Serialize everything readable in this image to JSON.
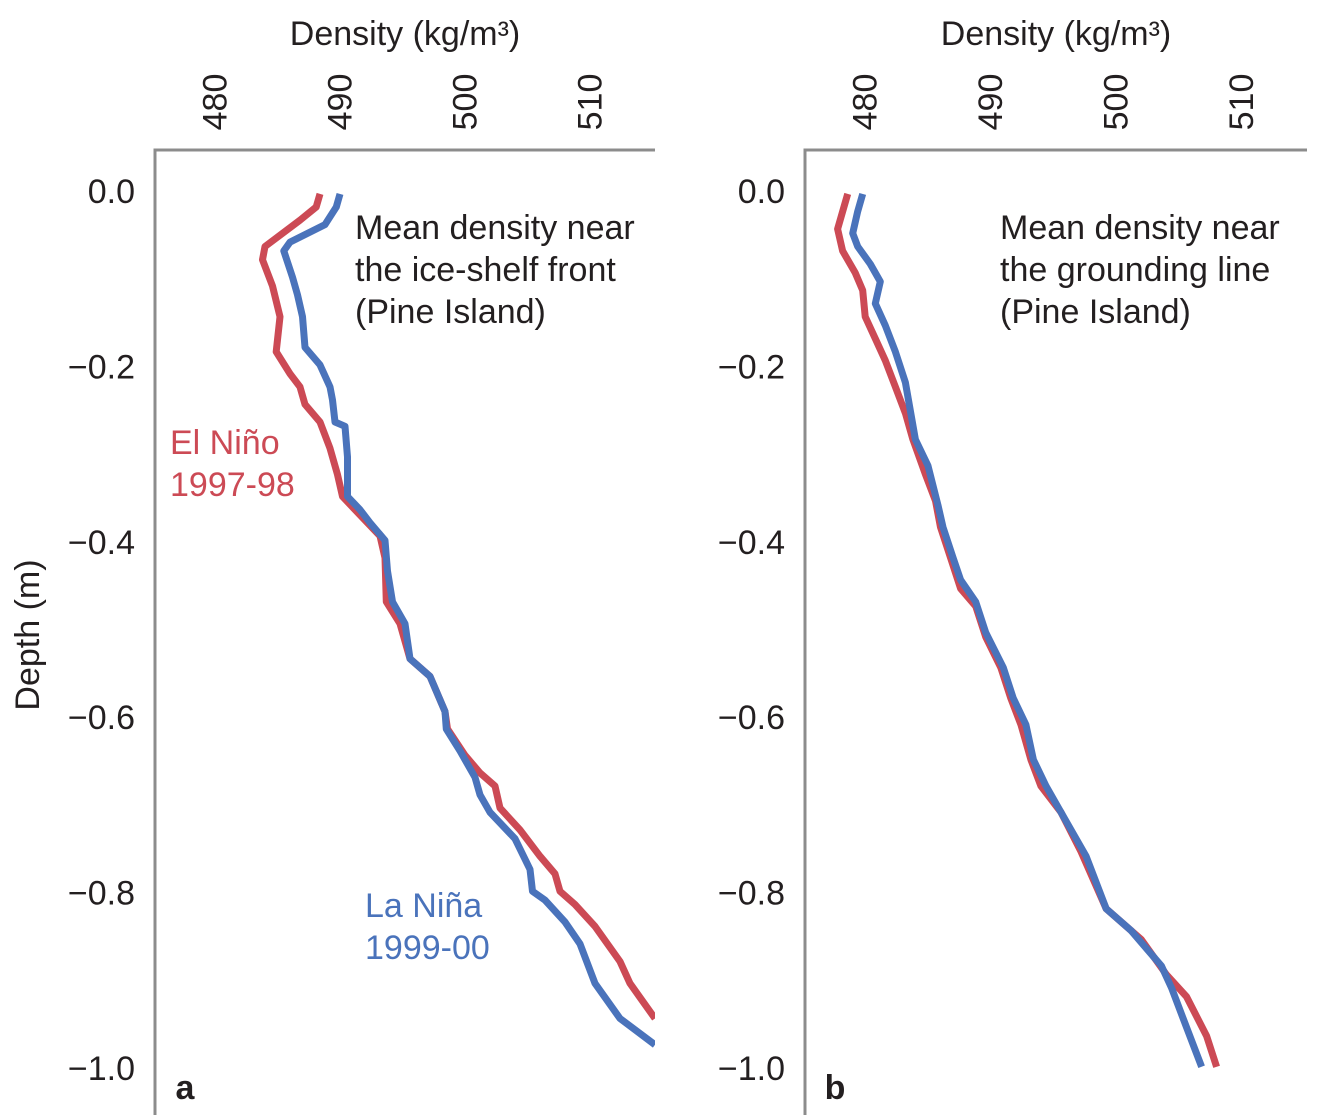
{
  "chart_data": [
    {
      "type": "line",
      "panel": "a",
      "x_label": "Density (kg/m³)",
      "y_label": "Depth (m)",
      "annotation": [
        "Mean density near",
        "the ice-shelf front",
        "(Pine Island)"
      ],
      "xlim": [
        475,
        515
      ],
      "xticks": [
        480,
        490,
        500,
        510
      ],
      "ylim": [
        -1.05,
        0.05
      ],
      "yticks": [
        {
          "value": 0,
          "label": "0.0"
        },
        {
          "value": -0.2,
          "label": "−0.2"
        },
        {
          "value": -0.4,
          "label": "−0.4"
        },
        {
          "value": -0.6,
          "label": "−0.6"
        },
        {
          "value": -0.8,
          "label": "−0.8"
        },
        {
          "value": -1.0,
          "label": "−1.0"
        }
      ],
      "grid": false,
      "series": [
        {
          "label": [
            "El Niño",
            "1997-98"
          ],
          "color": "#cc4a55",
          "depth": [
            0,
            -0.015,
            -0.03,
            -0.06,
            -0.075,
            -0.105,
            -0.14,
            -0.18,
            -0.205,
            -0.22,
            -0.24,
            -0.26,
            -0.29,
            -0.32,
            -0.345,
            -0.36,
            -0.39,
            -0.415,
            -0.465,
            -0.49,
            -0.53,
            -0.55,
            -0.59,
            -0.61,
            -0.64,
            -0.66,
            -0.675,
            -0.7,
            -0.725,
            -0.755,
            -0.775,
            -0.795,
            -0.81,
            -0.835,
            -0.875,
            -0.9,
            -0.94
          ],
          "values": [
            488.2,
            487.9,
            486.6,
            483.8,
            483.6,
            484.4,
            485.0,
            484.7,
            485.8,
            486.6,
            487.0,
            488.2,
            489.0,
            489.6,
            490.0,
            491.0,
            493.0,
            493.4,
            493.5,
            494.6,
            495.4,
            497.0,
            498.2,
            498.4,
            499.8,
            501.0,
            502.2,
            502.6,
            504.2,
            505.8,
            507.0,
            507.4,
            508.6,
            510.2,
            512.2,
            513.0,
            515.0
          ]
        },
        {
          "label": [
            "La Niña",
            "1999-00"
          ],
          "color": "#4a73bb",
          "depth": [
            0,
            -0.015,
            -0.035,
            -0.055,
            -0.065,
            -0.095,
            -0.115,
            -0.14,
            -0.175,
            -0.195,
            -0.22,
            -0.235,
            -0.26,
            -0.265,
            -0.3,
            -0.345,
            -0.36,
            -0.375,
            -0.395,
            -0.43,
            -0.465,
            -0.49,
            -0.53,
            -0.55,
            -0.59,
            -0.61,
            -0.635,
            -0.665,
            -0.685,
            -0.705,
            -0.735,
            -0.77,
            -0.795,
            -0.805,
            -0.83,
            -0.855,
            -0.9,
            -0.94,
            -0.97
          ],
          "values": [
            489.8,
            489.5,
            488.6,
            485.8,
            485.3,
            486.0,
            486.4,
            486.8,
            487.0,
            488.2,
            489.0,
            489.2,
            489.4,
            490.2,
            490.4,
            490.4,
            491.4,
            492.2,
            493.4,
            493.6,
            494.0,
            495.0,
            495.4,
            497.0,
            498.2,
            498.3,
            499.4,
            500.6,
            501.0,
            501.8,
            503.8,
            505.0,
            505.2,
            506.2,
            507.8,
            509.0,
            510.2,
            512.2,
            515.0
          ]
        }
      ]
    },
    {
      "type": "line",
      "panel": "b",
      "x_label": "Density (kg/m³)",
      "annotation": [
        "Mean density near",
        "the grounding line",
        "(Pine Island)"
      ],
      "xlim": [
        475,
        515
      ],
      "xticks": [
        480,
        490,
        500,
        510
      ],
      "ylim": [
        -1.05,
        0.05
      ],
      "yticks": [
        {
          "value": 0,
          "label": "0.0"
        },
        {
          "value": -0.2,
          "label": "−0.2"
        },
        {
          "value": -0.4,
          "label": "−0.4"
        },
        {
          "value": -0.6,
          "label": "−0.6"
        },
        {
          "value": -0.8,
          "label": "−0.8"
        },
        {
          "value": -1.0,
          "label": "−1.0"
        }
      ],
      "grid": false,
      "series": [
        {
          "color": "#cc4a55",
          "depth": [
            0,
            -0.04,
            -0.065,
            -0.09,
            -0.11,
            -0.14,
            -0.165,
            -0.19,
            -0.22,
            -0.25,
            -0.28,
            -0.32,
            -0.35,
            -0.38,
            -0.415,
            -0.45,
            -0.47,
            -0.505,
            -0.54,
            -0.575,
            -0.605,
            -0.645,
            -0.675,
            -0.705,
            -0.75,
            -0.815,
            -0.85,
            -0.89,
            -0.915,
            -0.96,
            -0.995
          ],
          "values": [
            478.4,
            477.6,
            478.0,
            479.0,
            479.6,
            479.8,
            480.6,
            481.4,
            482.2,
            483.0,
            483.6,
            484.6,
            485.4,
            485.8,
            486.6,
            487.4,
            488.6,
            489.4,
            490.6,
            491.4,
            492.2,
            493.0,
            493.8,
            495.4,
            497.0,
            499.0,
            501.8,
            503.8,
            505.4,
            507.0,
            507.8
          ]
        },
        {
          "color": "#4a73bb",
          "depth": [
            0,
            -0.02,
            -0.045,
            -0.06,
            -0.08,
            -0.1,
            -0.125,
            -0.15,
            -0.18,
            -0.215,
            -0.28,
            -0.31,
            -0.355,
            -0.38,
            -0.415,
            -0.44,
            -0.465,
            -0.5,
            -0.54,
            -0.575,
            -0.605,
            -0.645,
            -0.675,
            -0.705,
            -0.755,
            -0.815,
            -0.84,
            -0.88,
            -0.905,
            -0.95,
            -0.995
          ],
          "values": [
            479.6,
            479.2,
            478.8,
            479.2,
            480.2,
            481.0,
            480.6,
            481.4,
            482.2,
            483.0,
            483.8,
            484.8,
            485.6,
            486.0,
            486.8,
            487.4,
            488.6,
            489.4,
            490.8,
            491.6,
            492.6,
            493.2,
            494.2,
            495.4,
            497.4,
            499.0,
            501.0,
            503.4,
            504.2,
            505.4,
            506.6
          ]
        }
      ]
    }
  ]
}
